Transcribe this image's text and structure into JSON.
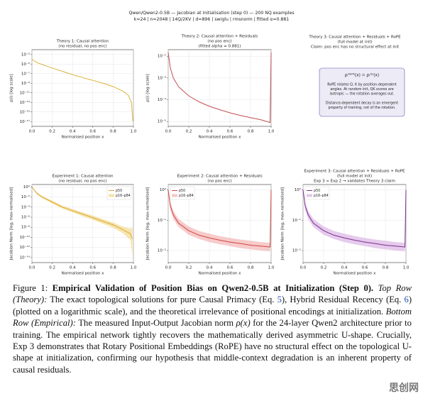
{
  "suptitle": [
    "Qwen/Qwen2-0.5B — Jacobian at Initialisation (step 0) — 200 NQ examples",
    "k=24 | n=2048 | 14Q/2KV | d=896 | swiglu | rmsnorm | fitted α=0.881"
  ],
  "chart_data": [
    {
      "type": "line",
      "title": [
        "Theory 1: Causal attention",
        "(no residual, no pos enc)"
      ],
      "xlabel": "Normalised position x",
      "ylabel": "ρ(i) [log scale]",
      "yscale": "log",
      "grid": true,
      "x": [
        0,
        0.05,
        0.1,
        0.2,
        0.3,
        0.4,
        0.5,
        0.6,
        0.7,
        0.8,
        0.9,
        0.95,
        0.98,
        0.995
      ],
      "series": [
        {
          "color": "#d9b43c",
          "values": [
            0.0001,
            2e-05,
            8e-06,
            1.5e-06,
            3e-07,
            6e-08,
            1.5e-08,
            4e-09,
            1e-09,
            2e-10,
            2e-11,
            3e-12,
            1e-13,
            1e-17
          ]
        }
      ],
      "xlim": [
        0,
        1
      ],
      "xticks": [
        {
          "value": 0,
          "label": "0.0"
        },
        {
          "value": 0.2,
          "label": "0.2"
        },
        {
          "value": 0.4,
          "label": "0.4"
        },
        {
          "value": 0.6,
          "label": "0.6"
        },
        {
          "value": 0.8,
          "label": "0.8"
        },
        {
          "value": 1,
          "label": "1.0"
        }
      ],
      "ylim": [
        1e-18,
        0.01
      ],
      "yticks": [
        {
          "value": 0.001,
          "label": "10⁻³"
        },
        {
          "value": 1e-05,
          "label": "10⁻⁵"
        },
        {
          "value": 1e-07,
          "label": "10⁻⁷"
        },
        {
          "value": 1e-09,
          "label": "10⁻⁹"
        },
        {
          "value": 1e-11,
          "label": "10⁻¹¹"
        },
        {
          "value": 1e-13,
          "label": "10⁻¹³"
        },
        {
          "value": 1e-15,
          "label": "10⁻¹⁵"
        },
        {
          "value": 1e-17,
          "label": "10⁻¹⁷"
        }
      ]
    },
    {
      "type": "line",
      "title": [
        "Theory 2: Causal attention + Residuals",
        "(no pos enc)",
        "(fitted alpha = 0.881)"
      ],
      "xlabel": "Normalised position x",
      "ylabel": "ρ(i) [log scale]",
      "yscale": "log",
      "grid": true,
      "x": [
        0,
        0.02,
        0.05,
        0.1,
        0.2,
        0.3,
        0.4,
        0.5,
        0.6,
        0.7,
        0.8,
        0.9,
        0.99,
        1
      ],
      "series": [
        {
          "color": "#c44e52",
          "values": [
            0.015,
            0.003,
            0.001,
            0.0004,
            0.00015,
            8e-05,
            5e-05,
            3.5e-05,
            2.5e-05,
            1.9e-05,
            1.5e-05,
            1.2e-05,
            9e-06,
            0.015
          ]
        }
      ],
      "xlim": [
        0,
        1
      ],
      "xticks": [
        {
          "value": 0,
          "label": "0.0"
        },
        {
          "value": 0.2,
          "label": "0.2"
        },
        {
          "value": 0.4,
          "label": "0.4"
        },
        {
          "value": 0.6,
          "label": "0.6"
        },
        {
          "value": 0.8,
          "label": "0.8"
        },
        {
          "value": 1,
          "label": "1.0"
        }
      ],
      "ylim": [
        6e-06,
        0.02
      ],
      "yticks": [
        {
          "value": 0.01,
          "label": "10⁻²"
        },
        {
          "value": 0.001,
          "label": "10⁻³"
        },
        {
          "value": 0.0001,
          "label": "10⁻⁴"
        },
        {
          "value": 1e-05,
          "label": "10⁻⁵"
        }
      ]
    },
    {
      "type": "line",
      "title": [
        "Experiment 1: Causal attention",
        "(no residual, no pos enc)"
      ],
      "xlabel": "Normalised position x",
      "ylabel": "Jacobian Norm [log, max-normalised]",
      "yscale": "log",
      "grid": true,
      "legend": "upper right",
      "x": [
        0,
        0.05,
        0.1,
        0.2,
        0.3,
        0.4,
        0.5,
        0.6,
        0.7,
        0.8,
        0.9,
        0.97,
        0.99
      ],
      "series": [
        {
          "name": "p50",
          "color": "#d9a830",
          "values": [
            1,
            0.05,
            0.01,
            0.001,
            0.0001,
            2e-05,
            4e-06,
            8e-07,
            1.5e-07,
            3e-08,
            3e-09,
            5e-10,
            5e-11
          ]
        },
        {
          "name": "p16–p84",
          "color": "#f0d070",
          "low": [
            1,
            0.03,
            0.006,
            0.0005,
            5e-05,
            9e-06,
            1.6e-06,
            3e-07,
            5e-08,
            8e-09,
            6e-10,
            3e-11,
            1e-14
          ],
          "high": [
            1,
            0.08,
            0.016,
            0.002,
            0.0002,
            4e-05,
            9e-06,
            2e-06,
            4e-07,
            9e-08,
            1.2e-08,
            5e-09,
            1e-08
          ]
        }
      ],
      "xlim": [
        0,
        1
      ],
      "xticks": [
        {
          "value": 0,
          "label": "0.0"
        },
        {
          "value": 0.2,
          "label": "0.2"
        },
        {
          "value": 0.4,
          "label": "0.4"
        },
        {
          "value": 0.6,
          "label": "0.6"
        },
        {
          "value": 0.8,
          "label": "0.8"
        },
        {
          "value": 1,
          "label": "1.0"
        }
      ],
      "ylim": [
        1e-15,
        3
      ],
      "yticks": [
        {
          "value": 1,
          "label": "10⁰"
        },
        {
          "value": 0.01,
          "label": "10⁻²"
        },
        {
          "value": 0.0001,
          "label": "10⁻⁴"
        },
        {
          "value": 1e-06,
          "label": "10⁻⁶"
        },
        {
          "value": 1e-08,
          "label": "10⁻⁸"
        },
        {
          "value": 1e-10,
          "label": "10⁻¹⁰"
        },
        {
          "value": 1e-12,
          "label": "10⁻¹²"
        },
        {
          "value": 1e-14,
          "label": "10⁻¹⁴"
        }
      ]
    },
    {
      "type": "line",
      "title": [
        "Experiment 2: Causal attention + Residuals",
        "(no pos enc)"
      ],
      "xlabel": "Normalised position x",
      "ylabel": "Jacobian Norm [log, max-normalised]",
      "yscale": "log",
      "grid": true,
      "legend": "upper left",
      "x": [
        0,
        0.02,
        0.05,
        0.1,
        0.2,
        0.3,
        0.4,
        0.5,
        0.6,
        0.7,
        0.8,
        0.9,
        0.99,
        1
      ],
      "series": [
        {
          "name": "p50",
          "color": "#d0453f",
          "values": [
            1,
            0.3,
            0.15,
            0.08,
            0.045,
            0.032,
            0.026,
            0.022,
            0.019,
            0.017,
            0.015,
            0.014,
            0.013,
            1
          ]
        },
        {
          "name": "p16–p84",
          "color": "#f0a0a0",
          "low": [
            1,
            0.22,
            0.11,
            0.06,
            0.033,
            0.024,
            0.019,
            0.016,
            0.014,
            0.012,
            0.011,
            0.01,
            0.0095,
            1
          ],
          "high": [
            1,
            0.4,
            0.2,
            0.11,
            0.062,
            0.044,
            0.036,
            0.03,
            0.026,
            0.023,
            0.021,
            0.019,
            0.018,
            1
          ]
        }
      ],
      "xlim": [
        0,
        1
      ],
      "xticks": [
        {
          "value": 0,
          "label": "0.0"
        },
        {
          "value": 0.2,
          "label": "0.2"
        },
        {
          "value": 0.4,
          "label": "0.4"
        },
        {
          "value": 0.6,
          "label": "0.6"
        },
        {
          "value": 0.8,
          "label": "0.8"
        },
        {
          "value": 1,
          "label": "1.0"
        }
      ],
      "ylim": [
        0.004,
        1.5
      ],
      "yticks": [
        {
          "value": 1,
          "label": "10⁰"
        },
        {
          "value": 0.1,
          "label": "10⁻¹"
        },
        {
          "value": 0.01,
          "label": "10⁻²"
        }
      ]
    },
    {
      "type": "line",
      "title": [
        "Experiment 3: Causal attention + Residuals + RoPE",
        "(full model at init)",
        "Exp 3 ≈ Exp 2 → validates Theory 3 claim"
      ],
      "xlabel": "Normalised position x",
      "ylabel": "Jacobian Norm [log, max-normalised]",
      "yscale": "log",
      "grid": true,
      "legend": "upper left",
      "x": [
        0,
        0.02,
        0.05,
        0.1,
        0.2,
        0.3,
        0.4,
        0.5,
        0.6,
        0.7,
        0.8,
        0.9,
        0.99,
        1
      ],
      "series": [
        {
          "name": "p50",
          "color": "#7d2f8e",
          "values": [
            1,
            0.3,
            0.15,
            0.08,
            0.045,
            0.032,
            0.026,
            0.022,
            0.019,
            0.017,
            0.015,
            0.014,
            0.013,
            1
          ]
        },
        {
          "name": "p16–p84",
          "color": "#d0a0dc",
          "low": [
            1,
            0.22,
            0.11,
            0.06,
            0.033,
            0.024,
            0.019,
            0.016,
            0.014,
            0.012,
            0.011,
            0.01,
            0.0095,
            1
          ],
          "high": [
            1,
            0.4,
            0.2,
            0.11,
            0.062,
            0.044,
            0.036,
            0.03,
            0.026,
            0.023,
            0.021,
            0.019,
            0.018,
            1
          ]
        }
      ],
      "xlim": [
        0,
        1
      ],
      "xticks": [
        {
          "value": 0,
          "label": "0.0"
        },
        {
          "value": 0.2,
          "label": "0.2"
        },
        {
          "value": 0.4,
          "label": "0.4"
        },
        {
          "value": 0.6,
          "label": "0.6"
        },
        {
          "value": 0.8,
          "label": "0.8"
        },
        {
          "value": 1,
          "label": "1.0"
        }
      ],
      "ylim": [
        0.004,
        1.5
      ],
      "yticks": [
        {
          "value": 1,
          "label": "10⁰"
        },
        {
          "value": 0.1,
          "label": "10⁻¹"
        },
        {
          "value": 0.01,
          "label": "10⁻²"
        }
      ]
    }
  ],
  "text_panel": {
    "title": [
      "Theory 3: Causal attention + Residuals + RoPE",
      "(full model at init)",
      "Claim: pos enc has no structural effect at init"
    ],
    "equation": "ρᵢᴿᵒᴾᴱ(x) = ρᵢ⁽²⁾(x)",
    "note_1": [
      "RoPE rotates Q, K by position-dependent",
      "angles. At random init, QK scores are",
      "isotropic — the rotation averages out."
    ],
    "note_2": [
      "Distance-dependent decay is an emergent",
      "property of training, not of the rotation."
    ]
  },
  "caption": {
    "label": "Figure 1:",
    "title": "Empirical Validation of Position Bias on Qwen2-0.5B at Initialization (Step 0).",
    "top_row_label": "Top Row (Theory):",
    "text_1": "The exact topological solutions for pure Causal Primacy (Eq.",
    "ref_1": "5",
    "text_2": "), Hybrid Residual Recency (Eq.",
    "ref_2": "6",
    "text_3": ") (plotted on a logarithmic scale), and the theoretical irrelevance of positional encodings at initialization.",
    "bottom_row_label": "Bottom Row (Empirical):",
    "text_4": "The measured Input-Output Jacobian norm",
    "rho": "ρ(x)",
    "text_5": "for the 24-layer Qwen2 architecture prior to training. The empirical network tightly recovers the mathematically derived asymmetric U-shape. Crucially, Exp 3 demonstrates that Rotary Positional Embeddings (RoPE) have no structural effect on the topological U-shape at initialization, confirming our hypothesis that middle-context degradation is an inherent property of causal residuals."
  },
  "watermark": "思创网"
}
